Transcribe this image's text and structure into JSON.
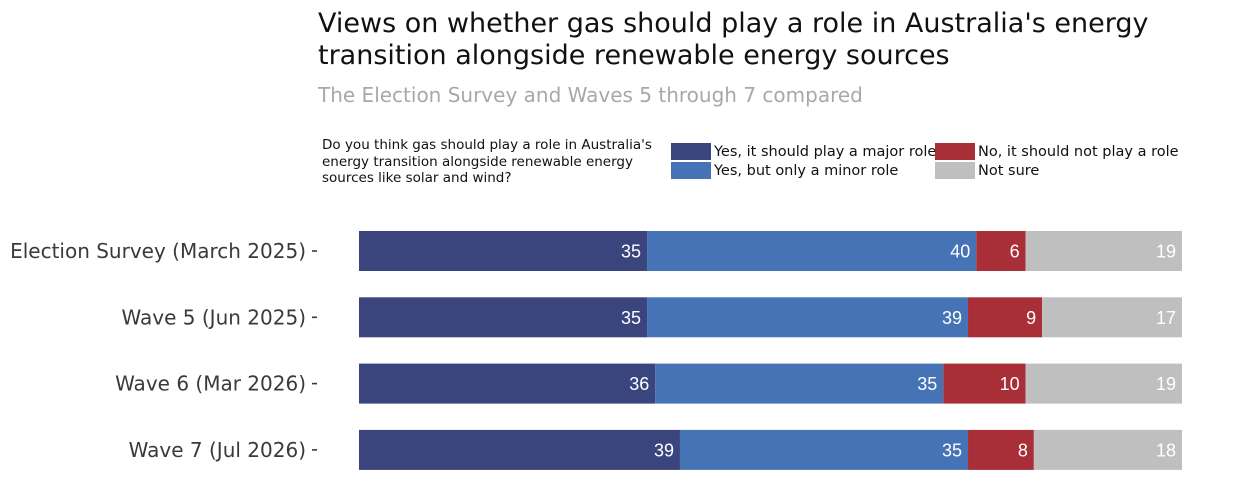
{
  "chart_data": {
    "type": "bar",
    "orientation": "horizontal",
    "stacked": true,
    "title": "Views on whether gas should play a role in Australia's energy transition alongside renewable energy sources",
    "subtitle": "The Election Survey and Waves 5 through 7 compared",
    "legend_title": "Do you think gas should play a role in Australia's energy transition alongside renewable energy sources like solar and wind?",
    "legend_position": "top",
    "categories": [
      "Election Survey (March 2025)",
      "Wave 5 (Jun 2025)",
      "Wave 6 (Mar 2026)",
      "Wave 7 (Jul 2026)"
    ],
    "series": [
      {
        "name": "Yes, it should play a major role",
        "color": "#3a457d",
        "values": [
          35,
          35,
          36,
          39
        ]
      },
      {
        "name": "Yes, but only a minor role",
        "color": "#4673b6",
        "values": [
          40,
          39,
          35,
          35
        ]
      },
      {
        "name": "No, it should not play a role",
        "color": "#a82e38",
        "values": [
          6,
          9,
          10,
          8
        ]
      },
      {
        "name": "Not sure",
        "color": "#bfbfbf",
        "values": [
          19,
          17,
          19,
          18
        ]
      }
    ],
    "xlim": [
      0,
      100
    ],
    "grid": false
  }
}
